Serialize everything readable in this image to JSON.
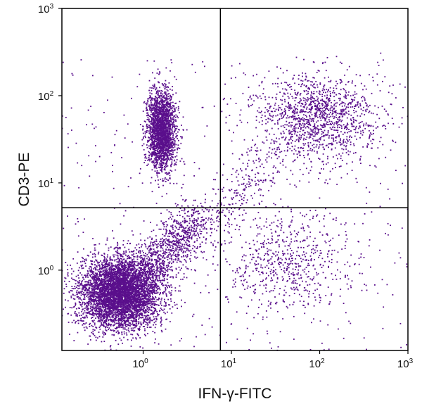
{
  "chart_data": {
    "type": "scatter",
    "x_scale": "log",
    "y_scale": "log",
    "xlim": [
      0.12,
      1000
    ],
    "ylim": [
      0.12,
      1000
    ],
    "xlabel": "IFN-γ-FITC",
    "ylabel": "CD3-PE",
    "grid": false,
    "legend": "none",
    "point_color": "#5a0f8c",
    "x_ticks": [
      {
        "value": 1,
        "base": "10",
        "exp": "0"
      },
      {
        "value": 10,
        "base": "10",
        "exp": "1"
      },
      {
        "value": 100,
        "base": "10",
        "exp": "2"
      },
      {
        "value": 1000,
        "base": "10",
        "exp": "3"
      }
    ],
    "y_ticks": [
      {
        "value": 1,
        "base": "10",
        "exp": "0"
      },
      {
        "value": 10,
        "base": "10",
        "exp": "1"
      },
      {
        "value": 100,
        "base": "10",
        "exp": "2"
      },
      {
        "value": 1000,
        "base": "10",
        "exp": "3"
      }
    ],
    "quadrant_gate": {
      "x": 7.5,
      "y": 5.2
    },
    "populations": [
      {
        "quadrant": "lower-left",
        "center": [
          0.55,
          0.55
        ],
        "spread_decades": [
          0.22,
          0.2
        ],
        "approx_events": 5200
      },
      {
        "quadrant": "upper-left",
        "center": [
          1.6,
          40
        ],
        "spread_decades": [
          0.08,
          0.22
        ],
        "approx_events": 2200
      },
      {
        "quadrant": "upper-right",
        "center": [
          90,
          55
        ],
        "spread_decades": [
          0.35,
          0.25
        ],
        "approx_events": 1300
      },
      {
        "quadrant": "lower-right",
        "center": [
          40,
          1.2
        ],
        "spread_decades": [
          0.35,
          0.3
        ],
        "approx_events": 600
      },
      {
        "quadrant": "lower-left-diagonal",
        "from": [
          1.0,
          0.8
        ],
        "to": [
          4.0,
          4.0
        ],
        "approx_events": 900
      },
      {
        "quadrant": "diagonal-transition",
        "from": [
          5.0,
          3.0
        ],
        "to": [
          30.0,
          20.0
        ],
        "approx_events": 250
      },
      {
        "quadrant": "background",
        "approx_events": 500
      }
    ]
  }
}
